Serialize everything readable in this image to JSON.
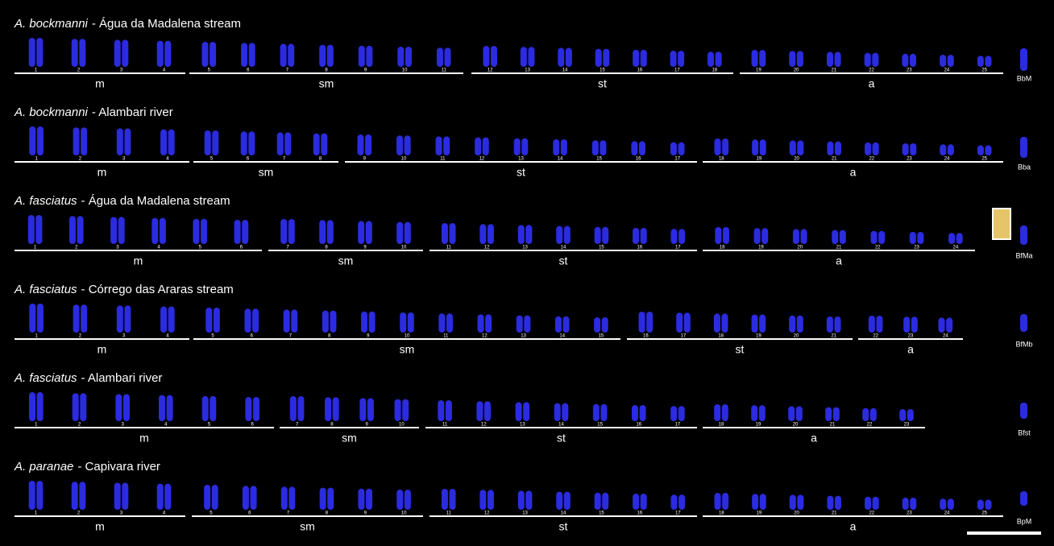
{
  "rows": [
    {
      "species": "A. bockmanni",
      "location": "- Água da Madalena stream",
      "b_label": "BbM",
      "groups": [
        {
          "label": "m",
          "chromosomes": [
            1,
            2,
            3,
            4
          ]
        },
        {
          "label": "sm",
          "chromosomes": [
            5,
            6,
            7,
            8,
            9,
            10,
            11
          ]
        },
        {
          "label": "st",
          "chromosomes": [
            12,
            13,
            14,
            15,
            16,
            17,
            18
          ]
        },
        {
          "label": "a",
          "chromosomes": [
            19,
            20,
            21,
            22,
            23,
            24,
            25
          ]
        }
      ]
    },
    {
      "species": "A. bockmanni",
      "location": "- Alambari river",
      "b_label": "Bba",
      "groups": [
        {
          "label": "m",
          "chromosomes": [
            1,
            2,
            3,
            4
          ]
        },
        {
          "label": "sm",
          "chromosomes": [
            5,
            6,
            7,
            8
          ]
        },
        {
          "label": "st",
          "chromosomes": [
            9,
            10,
            11,
            12,
            13,
            14,
            15,
            16,
            17
          ]
        },
        {
          "label": "a",
          "chromosomes": [
            18,
            19,
            20,
            21,
            22,
            23,
            24,
            25
          ]
        }
      ]
    },
    {
      "species": "A. fasciatus",
      "location": "- Água da Madalena stream",
      "b_label": "BfMa",
      "groups": [
        {
          "label": "m",
          "chromosomes": [
            1,
            2,
            3,
            4,
            5,
            6
          ]
        },
        {
          "label": "sm",
          "chromosomes": [
            7,
            8,
            9,
            10
          ]
        },
        {
          "label": "st",
          "chromosomes": [
            11,
            12,
            13,
            14,
            15,
            16,
            17
          ]
        },
        {
          "label": "a",
          "chromosomes": [
            18,
            19,
            20,
            21,
            22,
            23,
            24
          ]
        }
      ]
    },
    {
      "species": "A. fasciatus",
      "location": "- Córrego das Araras stream",
      "b_label": "BfMb",
      "groups": [
        {
          "label": "m",
          "chromosomes": [
            1,
            2,
            3,
            4
          ]
        },
        {
          "label": "sm",
          "chromosomes": [
            5,
            6,
            7,
            8,
            9,
            10,
            11,
            12,
            13,
            14,
            15
          ]
        },
        {
          "label": "st",
          "chromosomes": [
            16,
            17,
            18,
            19,
            20,
            21
          ]
        },
        {
          "label": "a",
          "chromosomes": [
            22,
            23,
            24
          ]
        }
      ]
    },
    {
      "species": "A. fasciatus",
      "location": "- Alambari river",
      "b_label": "Bfst",
      "groups": [
        {
          "label": "m",
          "chromosomes": [
            1,
            2,
            3,
            4,
            5,
            6
          ]
        },
        {
          "label": "sm",
          "chromosomes": [
            7,
            8,
            9,
            10
          ]
        },
        {
          "label": "st",
          "chromosomes": [
            11,
            12,
            13,
            14,
            15,
            16,
            17
          ]
        },
        {
          "label": "a",
          "chromosomes": [
            18,
            19,
            20,
            21,
            22,
            23
          ]
        }
      ]
    },
    {
      "species": "A. paranae",
      "location": "- Capivara river",
      "b_label": "BpM",
      "groups": [
        {
          "label": "m",
          "chromosomes": [
            1,
            2,
            3,
            4
          ]
        },
        {
          "label": "sm",
          "chromosomes": [
            5,
            6,
            7,
            8,
            9,
            10
          ]
        },
        {
          "label": "st",
          "chromosomes": [
            11,
            12,
            13,
            14,
            15,
            16,
            17
          ]
        },
        {
          "label": "a",
          "chromosomes": [
            18,
            19,
            20,
            21,
            22,
            23,
            24,
            25
          ]
        }
      ]
    }
  ]
}
